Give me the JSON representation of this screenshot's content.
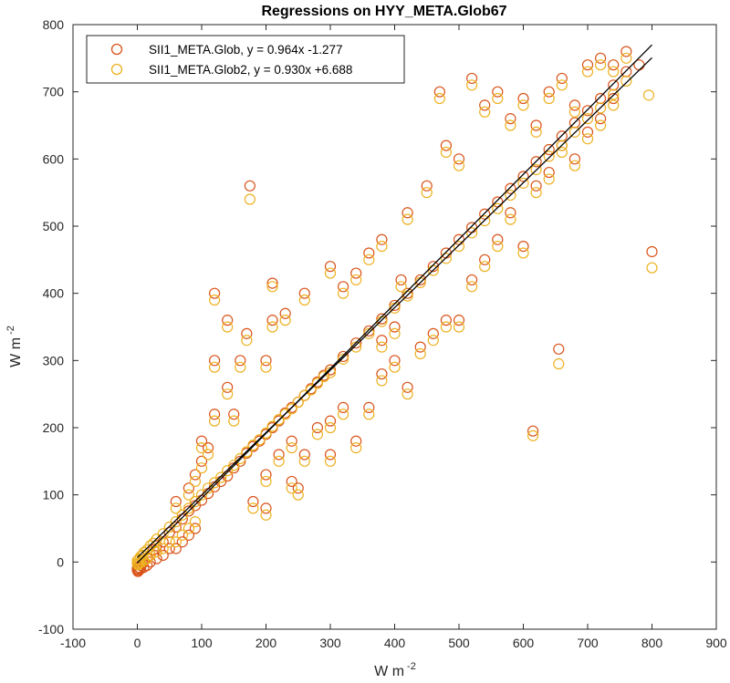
{
  "chart_data": {
    "type": "scatter",
    "title": "Regressions on HYY_META.Glob67",
    "xlabel": "W m",
    "xlabel_sup": "-2",
    "ylabel": "W m",
    "ylabel_sup": "-2",
    "xlim": [
      -100,
      900
    ],
    "ylim": [
      -100,
      800
    ],
    "xticks": [
      -100,
      0,
      100,
      200,
      300,
      400,
      500,
      600,
      700,
      800,
      900
    ],
    "yticks": [
      -100,
      0,
      100,
      200,
      300,
      400,
      500,
      600,
      700,
      800
    ],
    "grid": false,
    "legend_position": "top-left",
    "series": [
      {
        "name": "SII1_META.Glob, y = 0.964x -1.277",
        "color": "#D95319",
        "marker": "circle-open",
        "slope": 0.964,
        "intercept": -1.277,
        "points": [
          [
            0,
            -10
          ],
          [
            2,
            -8
          ],
          [
            5,
            -5
          ],
          [
            8,
            -2
          ],
          [
            10,
            2
          ],
          [
            15,
            6
          ],
          [
            20,
            10
          ],
          [
            25,
            18
          ],
          [
            30,
            24
          ],
          [
            40,
            30
          ],
          [
            50,
            44
          ],
          [
            60,
            52
          ],
          [
            70,
            64
          ],
          [
            80,
            76
          ],
          [
            90,
            84
          ],
          [
            100,
            92
          ],
          [
            110,
            102
          ],
          [
            120,
            112
          ],
          [
            130,
            120
          ],
          [
            140,
            128
          ],
          [
            150,
            140
          ],
          [
            160,
            150
          ],
          [
            170,
            162
          ],
          [
            180,
            172
          ],
          [
            190,
            180
          ],
          [
            200,
            190
          ],
          [
            210,
            200
          ],
          [
            220,
            210
          ],
          [
            230,
            222
          ],
          [
            240,
            230
          ],
          [
            250,
            238
          ],
          [
            260,
            248
          ],
          [
            270,
            258
          ],
          [
            280,
            268
          ],
          [
            290,
            278
          ],
          [
            300,
            286
          ],
          [
            320,
            306
          ],
          [
            340,
            326
          ],
          [
            360,
            344
          ],
          [
            380,
            362
          ],
          [
            400,
            382
          ],
          [
            420,
            400
          ],
          [
            440,
            420
          ],
          [
            460,
            440
          ],
          [
            480,
            460
          ],
          [
            500,
            480
          ],
          [
            520,
            498
          ],
          [
            540,
            518
          ],
          [
            560,
            536
          ],
          [
            580,
            556
          ],
          [
            600,
            574
          ],
          [
            620,
            596
          ],
          [
            640,
            614
          ],
          [
            660,
            634
          ],
          [
            680,
            654
          ],
          [
            700,
            672
          ],
          [
            720,
            690
          ],
          [
            740,
            710
          ],
          [
            760,
            730
          ],
          [
            60,
            90
          ],
          [
            80,
            110
          ],
          [
            100,
            150
          ],
          [
            120,
            220
          ],
          [
            140,
            260
          ],
          [
            160,
            300
          ],
          [
            170,
            340
          ],
          [
            175,
            560
          ],
          [
            120,
            400
          ],
          [
            140,
            360
          ],
          [
            120,
            300
          ],
          [
            100,
            180
          ],
          [
            90,
            130
          ],
          [
            110,
            170
          ],
          [
            150,
            220
          ],
          [
            200,
            300
          ],
          [
            210,
            360
          ],
          [
            210,
            415
          ],
          [
            230,
            370
          ],
          [
            260,
            400
          ],
          [
            300,
            440
          ],
          [
            320,
            410
          ],
          [
            340,
            430
          ],
          [
            360,
            460
          ],
          [
            380,
            480
          ],
          [
            380,
            330
          ],
          [
            400,
            350
          ],
          [
            410,
            420
          ],
          [
            420,
            520
          ],
          [
            450,
            560
          ],
          [
            470,
            700
          ],
          [
            480,
            620
          ],
          [
            500,
            600
          ],
          [
            520,
            720
          ],
          [
            540,
            680
          ],
          [
            560,
            700
          ],
          [
            580,
            660
          ],
          [
            600,
            690
          ],
          [
            620,
            650
          ],
          [
            640,
            700
          ],
          [
            660,
            720
          ],
          [
            680,
            680
          ],
          [
            700,
            740
          ],
          [
            720,
            750
          ],
          [
            740,
            740
          ],
          [
            760,
            760
          ],
          [
            780,
            740
          ],
          [
            800,
            462
          ],
          [
            655,
            317
          ],
          [
            615,
            195
          ],
          [
            200,
            80
          ],
          [
            240,
            120
          ],
          [
            260,
            160
          ],
          [
            280,
            200
          ],
          [
            300,
            210
          ],
          [
            320,
            230
          ],
          [
            340,
            180
          ],
          [
            360,
            230
          ],
          [
            380,
            280
          ],
          [
            400,
            300
          ],
          [
            420,
            260
          ],
          [
            440,
            320
          ],
          [
            460,
            340
          ],
          [
            480,
            360
          ],
          [
            500,
            360
          ],
          [
            520,
            420
          ],
          [
            540,
            450
          ],
          [
            560,
            480
          ],
          [
            580,
            520
          ],
          [
            600,
            470
          ],
          [
            620,
            560
          ],
          [
            640,
            580
          ],
          [
            660,
            620
          ],
          [
            680,
            600
          ],
          [
            700,
            640
          ],
          [
            720,
            660
          ],
          [
            740,
            690
          ],
          [
            300,
            160
          ],
          [
            250,
            110
          ],
          [
            180,
            90
          ],
          [
            200,
            130
          ],
          [
            220,
            160
          ],
          [
            240,
            180
          ],
          [
            60,
            20
          ],
          [
            70,
            30
          ],
          [
            80,
            40
          ],
          [
            90,
            50
          ],
          [
            40,
            10
          ],
          [
            50,
            20
          ],
          [
            30,
            5
          ],
          [
            20,
            0
          ],
          [
            15,
            -5
          ],
          [
            10,
            -8
          ],
          [
            5,
            -10
          ],
          [
            3,
            -12
          ],
          [
            1,
            -14
          ],
          [
            0,
            -12
          ]
        ]
      },
      {
        "name": "SII1_META.Glob2, y = 0.930x +6.688",
        "color": "#EDB120",
        "marker": "circle-open",
        "slope": 0.93,
        "intercept": 6.688,
        "points": [
          [
            0,
            2
          ],
          [
            2,
            4
          ],
          [
            5,
            8
          ],
          [
            8,
            10
          ],
          [
            10,
            14
          ],
          [
            15,
            18
          ],
          [
            20,
            24
          ],
          [
            25,
            28
          ],
          [
            30,
            34
          ],
          [
            40,
            42
          ],
          [
            50,
            52
          ],
          [
            60,
            60
          ],
          [
            70,
            70
          ],
          [
            80,
            80
          ],
          [
            90,
            90
          ],
          [
            100,
            100
          ],
          [
            110,
            110
          ],
          [
            120,
            118
          ],
          [
            130,
            126
          ],
          [
            140,
            136
          ],
          [
            150,
            144
          ],
          [
            160,
            154
          ],
          [
            170,
            164
          ],
          [
            180,
            174
          ],
          [
            190,
            182
          ],
          [
            200,
            192
          ],
          [
            210,
            202
          ],
          [
            220,
            212
          ],
          [
            230,
            220
          ],
          [
            240,
            228
          ],
          [
            250,
            238
          ],
          [
            260,
            248
          ],
          [
            270,
            256
          ],
          [
            280,
            266
          ],
          [
            290,
            276
          ],
          [
            300,
            282
          ],
          [
            320,
            302
          ],
          [
            340,
            320
          ],
          [
            360,
            340
          ],
          [
            380,
            358
          ],
          [
            400,
            378
          ],
          [
            420,
            396
          ],
          [
            440,
            416
          ],
          [
            460,
            434
          ],
          [
            480,
            452
          ],
          [
            500,
            470
          ],
          [
            520,
            490
          ],
          [
            540,
            508
          ],
          [
            560,
            526
          ],
          [
            580,
            546
          ],
          [
            600,
            564
          ],
          [
            620,
            584
          ],
          [
            640,
            604
          ],
          [
            660,
            620
          ],
          [
            680,
            640
          ],
          [
            700,
            660
          ],
          [
            720,
            676
          ],
          [
            740,
            696
          ],
          [
            760,
            716
          ],
          [
            60,
            80
          ],
          [
            80,
            100
          ],
          [
            100,
            140
          ],
          [
            120,
            210
          ],
          [
            140,
            250
          ],
          [
            160,
            290
          ],
          [
            170,
            330
          ],
          [
            175,
            540
          ],
          [
            120,
            390
          ],
          [
            140,
            350
          ],
          [
            120,
            290
          ],
          [
            100,
            170
          ],
          [
            90,
            120
          ],
          [
            110,
            160
          ],
          [
            150,
            210
          ],
          [
            200,
            290
          ],
          [
            210,
            350
          ],
          [
            210,
            410
          ],
          [
            230,
            360
          ],
          [
            260,
            390
          ],
          [
            300,
            430
          ],
          [
            320,
            400
          ],
          [
            340,
            420
          ],
          [
            360,
            450
          ],
          [
            380,
            470
          ],
          [
            380,
            320
          ],
          [
            400,
            340
          ],
          [
            410,
            410
          ],
          [
            420,
            510
          ],
          [
            450,
            550
          ],
          [
            470,
            690
          ],
          [
            480,
            610
          ],
          [
            500,
            590
          ],
          [
            520,
            710
          ],
          [
            540,
            670
          ],
          [
            560,
            690
          ],
          [
            580,
            650
          ],
          [
            600,
            680
          ],
          [
            620,
            640
          ],
          [
            640,
            690
          ],
          [
            660,
            710
          ],
          [
            680,
            670
          ],
          [
            700,
            730
          ],
          [
            720,
            740
          ],
          [
            740,
            730
          ],
          [
            760,
            750
          ],
          [
            795,
            695
          ],
          [
            800,
            438
          ],
          [
            655,
            295
          ],
          [
            615,
            188
          ],
          [
            200,
            70
          ],
          [
            240,
            110
          ],
          [
            260,
            150
          ],
          [
            280,
            190
          ],
          [
            300,
            200
          ],
          [
            320,
            220
          ],
          [
            340,
            170
          ],
          [
            360,
            220
          ],
          [
            380,
            270
          ],
          [
            400,
            290
          ],
          [
            420,
            250
          ],
          [
            440,
            310
          ],
          [
            460,
            330
          ],
          [
            480,
            350
          ],
          [
            500,
            350
          ],
          [
            520,
            410
          ],
          [
            540,
            440
          ],
          [
            560,
            470
          ],
          [
            580,
            510
          ],
          [
            600,
            460
          ],
          [
            620,
            550
          ],
          [
            640,
            570
          ],
          [
            660,
            610
          ],
          [
            680,
            590
          ],
          [
            700,
            630
          ],
          [
            720,
            650
          ],
          [
            740,
            680
          ],
          [
            300,
            150
          ],
          [
            250,
            100
          ],
          [
            180,
            80
          ],
          [
            200,
            120
          ],
          [
            220,
            150
          ],
          [
            240,
            170
          ],
          [
            60,
            30
          ],
          [
            70,
            40
          ],
          [
            80,
            50
          ],
          [
            90,
            60
          ],
          [
            40,
            20
          ],
          [
            50,
            30
          ],
          [
            30,
            15
          ],
          [
            20,
            10
          ],
          [
            15,
            5
          ],
          [
            10,
            2
          ],
          [
            5,
            0
          ],
          [
            3,
            -2
          ],
          [
            1,
            -4
          ],
          [
            0,
            -2
          ]
        ]
      }
    ]
  }
}
